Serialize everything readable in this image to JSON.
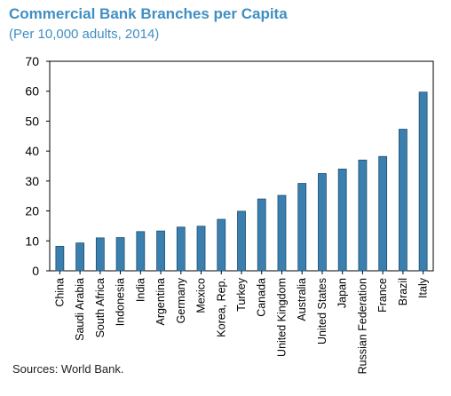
{
  "chart_data": {
    "type": "bar",
    "title": "Commercial Bank Branches per Capita",
    "subtitle": "(Per 10,000 adults, 2014)",
    "categories": [
      "China",
      "Saudi Arabia",
      "South Africa",
      "Indonesia",
      "India",
      "Argentina",
      "Germany",
      "Mexico",
      "Korea, Rep.",
      "Turkey",
      "Canada",
      "United Kingdom",
      "Australia",
      "United States",
      "Japan",
      "Russian Federation",
      "France",
      "Brazil",
      "Italy"
    ],
    "values": [
      8.2,
      9.3,
      11.0,
      11.1,
      13.1,
      13.3,
      14.6,
      14.9,
      17.2,
      19.9,
      24.0,
      25.2,
      29.2,
      32.5,
      34.0,
      37.0,
      38.2,
      47.3,
      59.7
    ],
    "yticks": [
      0,
      10,
      20,
      30,
      40,
      50,
      60,
      70
    ],
    "ylim": [
      0,
      70
    ],
    "grid": false,
    "bar_color": "#3a7fae",
    "bar_edge_color": "#1f4f72"
  },
  "footer": {
    "source": "Sources: World Bank."
  }
}
